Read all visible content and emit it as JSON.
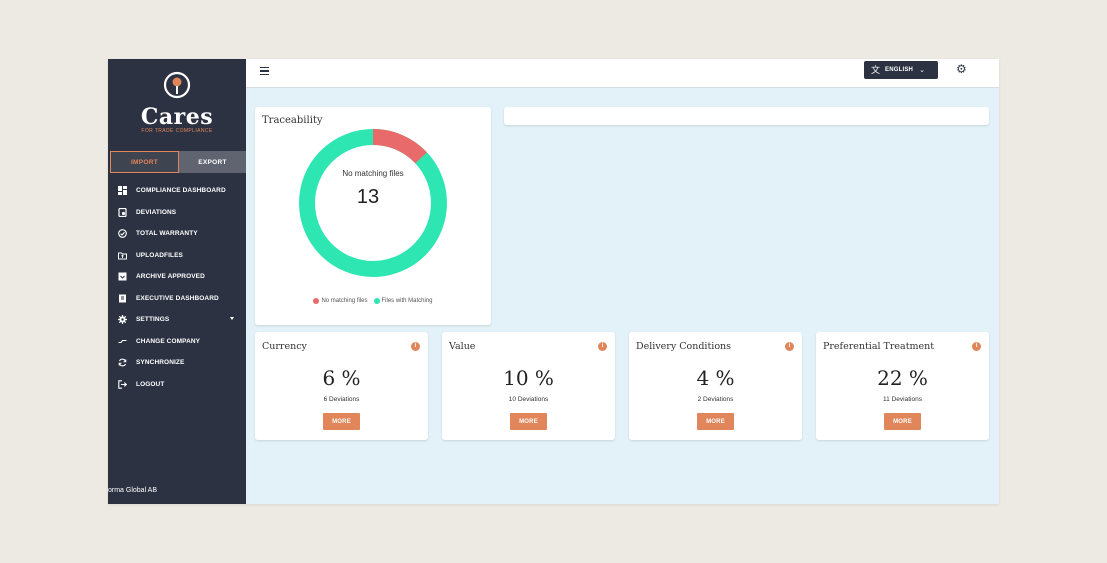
{
  "brand": {
    "name": "Cares",
    "tagline": "FOR TRADE COMPLIANCE"
  },
  "toggle": {
    "import_label": "IMPORT",
    "export_label": "EXPORT",
    "active": "IMPORT"
  },
  "sidebar": {
    "items": [
      {
        "label": "COMPLIANCE DASHBOARD",
        "icon": "dashboard-icon"
      },
      {
        "label": "DEVIATIONS",
        "icon": "deviations-icon"
      },
      {
        "label": "TOTAL WARRANTY",
        "icon": "check-circle-icon"
      },
      {
        "label": "UPLOADFILES",
        "icon": "upload-folder-icon"
      },
      {
        "label": "ARCHIVE APPROVED",
        "icon": "archive-icon"
      },
      {
        "label": "EXECUTIVE DASHBOARD",
        "icon": "executive-icon"
      },
      {
        "label": "SETTINGS",
        "icon": "gear-icon"
      },
      {
        "label": "CHANGE COMPANY",
        "icon": "change-icon"
      },
      {
        "label": "SYNCHRONIZE",
        "icon": "sync-icon"
      },
      {
        "label": "LOGOUT",
        "icon": "logout-icon"
      }
    ],
    "footer_company": "orma Global AB"
  },
  "topbar": {
    "language": "ENGLISH"
  },
  "colors": {
    "sidebar": "#2c3242",
    "accent": "#e1865a",
    "no_matching": "#e86a6a",
    "matching": "#2ee6b2",
    "content_bg": "#e3f1f9"
  },
  "traceability": {
    "title": "Traceability",
    "center_label": "No matching files",
    "center_value": "13",
    "legend": [
      "No matching files",
      "Files with Matching"
    ],
    "no_matching_fraction": 0.13
  },
  "stats": [
    {
      "title": "Currency",
      "value": "6 %",
      "sub": "6 Deviations",
      "button": "MORE"
    },
    {
      "title": "Value",
      "value": "10 %",
      "sub": "10 Deviations",
      "button": "MORE"
    },
    {
      "title": "Delivery Conditions",
      "value": "4 %",
      "sub": "2 Deviations",
      "button": "MORE"
    },
    {
      "title": "Preferential Treatment",
      "value": "22 %",
      "sub": "11 Deviations",
      "button": "MORE"
    }
  ]
}
